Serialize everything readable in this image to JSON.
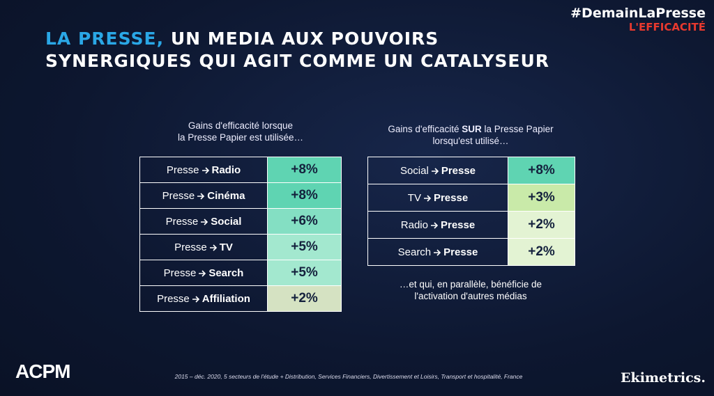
{
  "header": {
    "hashtag": "#DemainLaPresse",
    "tag": "L'EFFICACITÉ",
    "title_highlight": "LA PRESSE,",
    "title_rest": "UN MEDIA AUX POUVOIRS",
    "title_line2": "SYNERGIQUES QUI AGIT COMME UN CATALYSEUR"
  },
  "left_table": {
    "caption": [
      {
        "text": "Gains d'efficacité lorsque",
        "bold": false
      },
      {
        "text": "la Presse Papier est utilisée…",
        "bold": false
      }
    ],
    "rows": [
      {
        "from": "Presse",
        "to": "Radio",
        "gain": "+8%",
        "color": "#5fd4b2"
      },
      {
        "from": "Presse",
        "to": "Cinéma",
        "gain": "+8%",
        "color": "#5fd4b2"
      },
      {
        "from": "Presse",
        "to": "Social",
        "gain": "+6%",
        "color": "#84dfc3"
      },
      {
        "from": "Presse",
        "to": "TV",
        "gain": "+5%",
        "color": "#a3e8cf"
      },
      {
        "from": "Presse",
        "to": "Search",
        "gain": "+5%",
        "color": "#a3e8cf"
      },
      {
        "from": "Presse",
        "to": "Affiliation",
        "gain": "+2%",
        "color": "#d5e2c2"
      }
    ]
  },
  "right_table": {
    "caption": [
      {
        "text": "Gains d'efficacité ",
        "bold": false
      },
      {
        "text": "SUR",
        "bold": true
      },
      {
        "text": " la Presse Papier lorsqu'est utilisé…",
        "bold": false
      }
    ],
    "rows": [
      {
        "from": "Social",
        "to": "Presse",
        "gain": "+8%",
        "color": "#5fd4b2"
      },
      {
        "from": "TV",
        "to": "Presse",
        "gain": "+3%",
        "color": "#c9eaa9"
      },
      {
        "from": "Radio",
        "to": "Presse",
        "gain": "+2%",
        "color": "#e3f3d3"
      },
      {
        "from": "Search",
        "to": "Presse",
        "gain": "+2%",
        "color": "#e3f3d3"
      }
    ],
    "note": "…et qui, en parallèle, bénéficie de l'activation d'autres médias"
  },
  "footer": {
    "logo_left": "ACPM",
    "source": "2015 – déc. 2020, 5 secteurs de l'étude + Distribution, Services Financiers, Divertissement et Loisirs, Transport et hospitalité, France",
    "logo_right": "Ekimetrics."
  }
}
